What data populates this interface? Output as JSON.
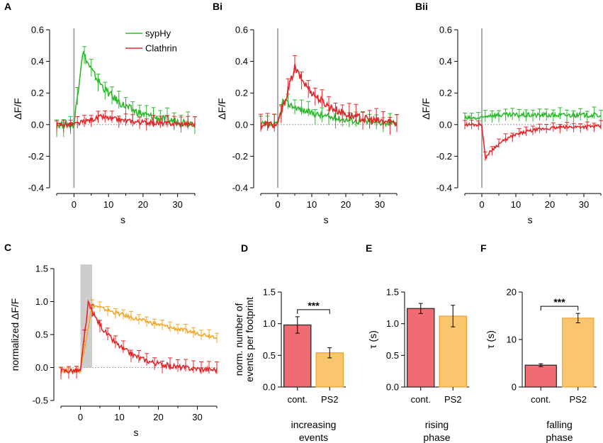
{
  "colors": {
    "green": "#2db82d",
    "red": "#e3262a",
    "orange": "#f5a623",
    "bar_red": "#f06c73",
    "bar_orange": "#f9c66e",
    "grey": "#b8b8b8"
  },
  "legend": {
    "entries": [
      "sypHy",
      "Clathrin"
    ]
  },
  "chart_data": [
    {
      "id": "A",
      "panel": "A",
      "type": "line",
      "xlabel": "s",
      "ylabel": "ΔF/F",
      "xlim": [
        -5,
        35
      ],
      "ylim": [
        -0.4,
        0.6
      ],
      "xticks": [
        "0",
        "10",
        "20",
        "30"
      ],
      "yticks": [
        "-0.4",
        "-0.2",
        "0.0",
        "0.2",
        "0.4",
        "0.6"
      ],
      "stim_x": 0,
      "series": [
        {
          "name": "sypHy",
          "color": "green",
          "kind": "rise_decay",
          "pre": 0.0,
          "peak": 0.46,
          "t_peak": 2.5,
          "tau": 9,
          "baseline": 0.0,
          "noise": 0.025
        },
        {
          "name": "Clathrin",
          "color": "red",
          "kind": "rise_decay",
          "pre": 0.0,
          "peak": 0.05,
          "t_peak": 8,
          "tau": 10,
          "baseline": 0.0,
          "noise": 0.015
        }
      ]
    },
    {
      "id": "Bi",
      "panel": "Bi",
      "type": "line",
      "xlabel": "s",
      "ylabel": "ΔF/F",
      "xlim": [
        -5,
        35
      ],
      "ylim": [
        -0.4,
        0.6
      ],
      "xticks": [
        "0",
        "10",
        "20",
        "30"
      ],
      "yticks": [
        "-0.4",
        "-0.2",
        "0.0",
        "0.2",
        "0.4",
        "0.6"
      ],
      "stim_x": 0,
      "series": [
        {
          "name": "sypHy",
          "color": "green",
          "kind": "rise_decay",
          "pre": 0.0,
          "peak": 0.15,
          "t_peak": 1.5,
          "tau": 12,
          "baseline": 0.0,
          "noise": 0.02
        },
        {
          "name": "Clathrin",
          "color": "red",
          "kind": "rise_decay",
          "pre": 0.0,
          "peak": 0.36,
          "t_peak": 5,
          "tau": 9,
          "baseline": 0.0,
          "noise": 0.025
        }
      ]
    },
    {
      "id": "Bii",
      "panel": "Bii",
      "type": "line",
      "xlabel": "s",
      "ylabel": "ΔF/F",
      "xlim": [
        -5,
        35
      ],
      "ylim": [
        -0.4,
        0.6
      ],
      "xticks": [
        "0",
        "10",
        "20",
        "30"
      ],
      "yticks": [
        "-0.4",
        "-0.2",
        "0.0",
        "0.2",
        "0.4",
        "0.6"
      ],
      "stim_x": 0,
      "series": [
        {
          "name": "sypHy",
          "color": "green",
          "kind": "rise_decay",
          "pre": 0.04,
          "peak": 0.06,
          "t_peak": 2,
          "tau": 40,
          "baseline": 0.06,
          "noise": 0.015
        },
        {
          "name": "Clathrin",
          "color": "red",
          "kind": "rise_decay",
          "pre": 0.0,
          "peak": -0.21,
          "t_peak": 1,
          "tau": 7,
          "baseline": -0.01,
          "noise": 0.01
        }
      ]
    },
    {
      "id": "C",
      "panel": "C",
      "type": "line",
      "xlabel": "s",
      "ylabel": "normalized ΔF/F",
      "xlim": [
        -5,
        35
      ],
      "ylim": [
        -0.5,
        1.5
      ],
      "xticks": [
        "0",
        "10",
        "20",
        "30"
      ],
      "yticks": [
        "-0.5",
        "0.0",
        "0.5",
        "1.0",
        "1.5"
      ],
      "shade": [
        0,
        3
      ],
      "series": [
        {
          "name": "PS2",
          "color": "orange",
          "kind": "rise_decay",
          "pre": -0.05,
          "peak": 0.95,
          "t_peak": 3,
          "tau": 45,
          "baseline": 0.0,
          "noise": 0.03
        },
        {
          "name": "cont.",
          "color": "red",
          "kind": "rise_decay",
          "pre": -0.05,
          "peak": 0.97,
          "t_peak": 2,
          "tau": 8,
          "baseline": -0.05,
          "noise": 0.04
        }
      ]
    },
    {
      "id": "D",
      "panel": "D",
      "type": "bar",
      "ylabel": "norm. number of\nevents per footprint",
      "caption": "increasing\nevents",
      "categories": [
        "cont.",
        "PS2"
      ],
      "values": [
        0.98,
        0.54
      ],
      "errors": [
        0.13,
        0.08
      ],
      "colors": [
        "bar_red",
        "bar_orange"
      ],
      "ylim": [
        0,
        1.5
      ],
      "yticks": [
        "0.0",
        "0.5",
        "1.0",
        "1.5"
      ],
      "significance": "***"
    },
    {
      "id": "E",
      "panel": "E",
      "type": "bar",
      "ylabel": "τ (s)",
      "caption": "rising\nphase",
      "categories": [
        "cont.",
        "PS2"
      ],
      "values": [
        1.24,
        1.12
      ],
      "errors": [
        0.08,
        0.17
      ],
      "colors": [
        "bar_red",
        "bar_orange"
      ],
      "ylim": [
        0,
        1.5
      ],
      "yticks": [
        "0.0",
        "0.5",
        "1.0",
        "1.5"
      ],
      "significance": ""
    },
    {
      "id": "F",
      "panel": "F",
      "type": "bar",
      "ylabel": "τ (s)",
      "caption": "falling\nphase",
      "categories": [
        "cont.",
        "PS2"
      ],
      "values": [
        4.6,
        14.5
      ],
      "errors": [
        0.3,
        1.0
      ],
      "colors": [
        "bar_red",
        "bar_orange"
      ],
      "ylim": [
        0,
        20
      ],
      "yticks": [
        "0",
        "10",
        "20"
      ],
      "significance": "***"
    }
  ]
}
